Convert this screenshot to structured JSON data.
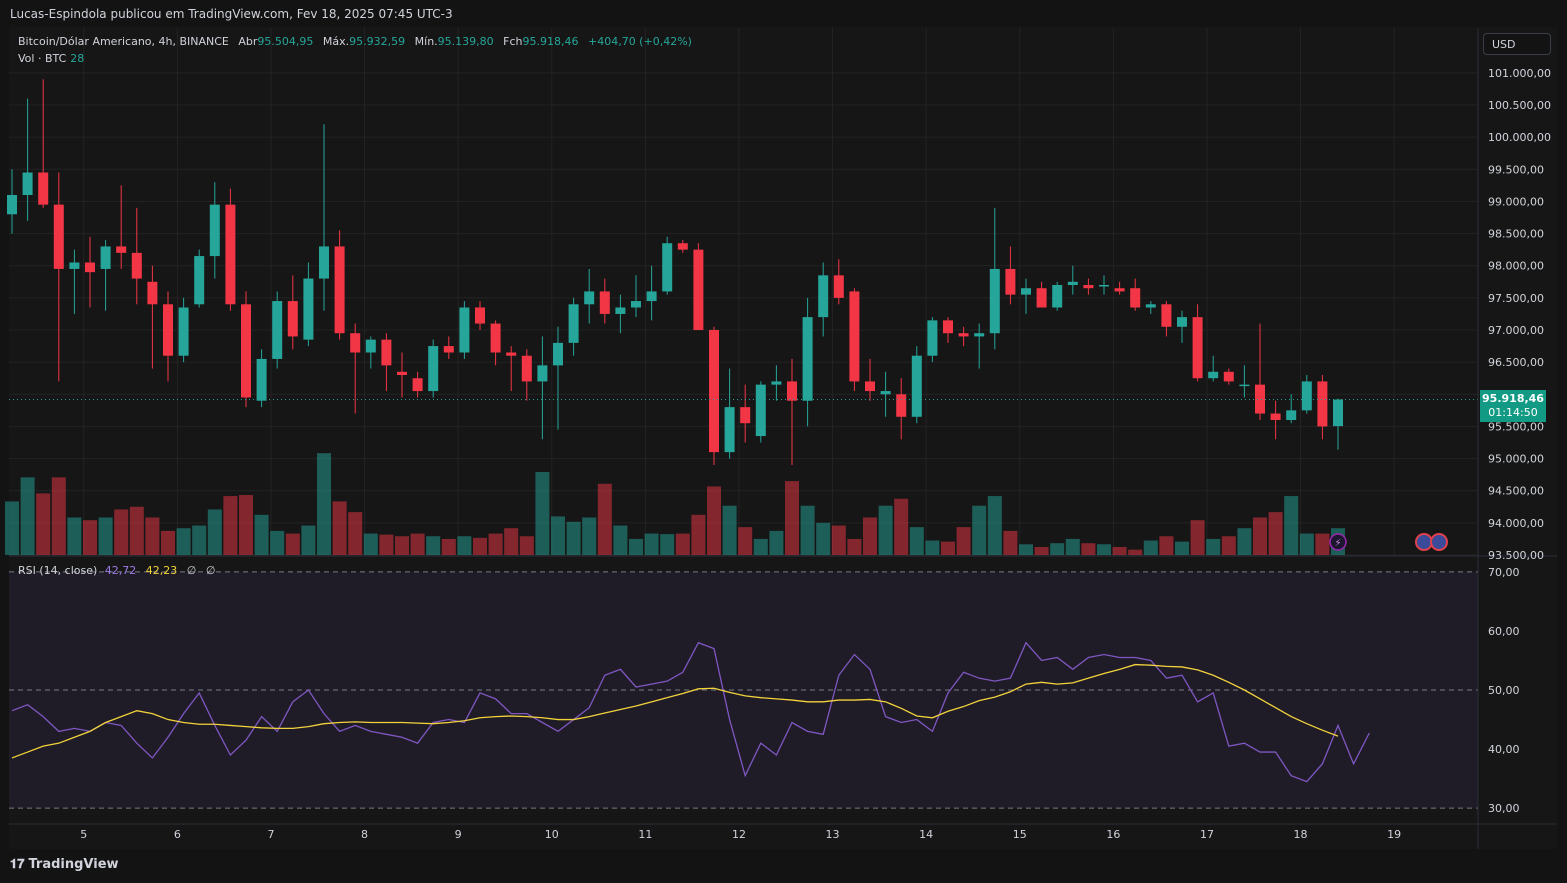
{
  "header": {
    "publisher_line": "Lucas-Espindola publicou em TradingView.com, Fev 18, 2025 07:45 UTC-3"
  },
  "legend": {
    "symbol": "Bitcoin/Dólar Americano, 4h, BINANCE",
    "open_label": "Abr",
    "open": "95.504,95",
    "high_label": "Máx.",
    "high": "95.932,59",
    "low_label": "Mín.",
    "low": "95.139,80",
    "close_label": "Fch",
    "close": "95.918,46",
    "change": "+404,70 (+0,42%)",
    "vol_label": "Vol · BTC",
    "vol_value": "28"
  },
  "rsi_legend": {
    "label": "RSI (14, close)",
    "rsi": "42,72",
    "ma": "42,23",
    "v3": "∅",
    "v4": "∅"
  },
  "currency_button": "USD",
  "price_tag": {
    "price": "95.918,46",
    "countdown": "01:14:50"
  },
  "brand": {
    "name": "TradingView",
    "logo": "tradingview-logo-icon"
  },
  "colors": {
    "up": "#26a69a",
    "down": "#f23645",
    "rsi": "#7e57c2",
    "rsi_ma": "#f2d33c",
    "background": "#161616"
  },
  "chart_data": [
    {
      "type": "candlestick",
      "title": "Bitcoin/Dólar Americano, 4h, BINANCE",
      "ylim": [
        93500,
        101200
      ],
      "y_ticks": [
        "101.000,00",
        "100.500,00",
        "100.000,00",
        "99.500,00",
        "99.000,00",
        "98.500,00",
        "98.000,00",
        "97.500,00",
        "97.000,00",
        "96.500,00",
        "96.000,00",
        "95.500,00",
        "95.000,00",
        "94.500,00",
        "94.000,00",
        "93.500,00"
      ],
      "y_tick_values": [
        101000,
        100500,
        100000,
        99500,
        99000,
        98500,
        98000,
        97500,
        97000,
        96500,
        96000,
        95500,
        95000,
        94500,
        94000,
        93500
      ],
      "x_ticks": [
        "5",
        "6",
        "7",
        "8",
        "9",
        "10",
        "11",
        "12",
        "13",
        "14",
        "15",
        "16",
        "17",
        "18",
        "19"
      ],
      "x_tick_positions": [
        4.6,
        10.6,
        16.6,
        22.6,
        28.6,
        34.6,
        40.6,
        46.6,
        52.6,
        58.6,
        64.6,
        70.6,
        76.6,
        82.6,
        88.6
      ],
      "last_price": 95918.46,
      "candles": [
        {
          "o": 98800,
          "h": 99500,
          "l": 98500,
          "c": 99100
        },
        {
          "o": 99100,
          "h": 100600,
          "l": 98700,
          "c": 99450
        },
        {
          "o": 99450,
          "h": 100900,
          "l": 98900,
          "c": 98950
        },
        {
          "o": 98950,
          "h": 99450,
          "l": 96200,
          "c": 97950
        },
        {
          "o": 97950,
          "h": 98250,
          "l": 97250,
          "c": 98050
        },
        {
          "o": 98050,
          "h": 98450,
          "l": 97350,
          "c": 97900
        },
        {
          "o": 97950,
          "h": 98400,
          "l": 97300,
          "c": 98300
        },
        {
          "o": 98300,
          "h": 99250,
          "l": 97950,
          "c": 98200
        },
        {
          "o": 98200,
          "h": 98900,
          "l": 97400,
          "c": 97800
        },
        {
          "o": 97750,
          "h": 98000,
          "l": 96400,
          "c": 97400
        },
        {
          "o": 97400,
          "h": 97600,
          "l": 96200,
          "c": 96600
        },
        {
          "o": 96600,
          "h": 97500,
          "l": 96500,
          "c": 97350
        },
        {
          "o": 97400,
          "h": 98250,
          "l": 97350,
          "c": 98150
        },
        {
          "o": 98150,
          "h": 99300,
          "l": 97800,
          "c": 98950
        },
        {
          "o": 98950,
          "h": 99200,
          "l": 97300,
          "c": 97400
        },
        {
          "o": 97400,
          "h": 97600,
          "l": 95800,
          "c": 95950
        },
        {
          "o": 95900,
          "h": 96700,
          "l": 95800,
          "c": 96550
        },
        {
          "o": 96550,
          "h": 97600,
          "l": 96400,
          "c": 97450
        },
        {
          "o": 97450,
          "h": 97850,
          "l": 96700,
          "c": 96900
        },
        {
          "o": 96850,
          "h": 98050,
          "l": 96750,
          "c": 97800
        },
        {
          "o": 97800,
          "h": 100200,
          "l": 97300,
          "c": 98300
        },
        {
          "o": 98300,
          "h": 98550,
          "l": 96850,
          "c": 96950
        },
        {
          "o": 96950,
          "h": 97100,
          "l": 95700,
          "c": 96650
        },
        {
          "o": 96650,
          "h": 96900,
          "l": 96400,
          "c": 96850
        },
        {
          "o": 96850,
          "h": 96950,
          "l": 96050,
          "c": 96450
        },
        {
          "o": 96350,
          "h": 96650,
          "l": 95950,
          "c": 96300
        },
        {
          "o": 96250,
          "h": 96350,
          "l": 95950,
          "c": 96050
        },
        {
          "o": 96050,
          "h": 96850,
          "l": 95950,
          "c": 96750
        },
        {
          "o": 96750,
          "h": 96900,
          "l": 96550,
          "c": 96650
        },
        {
          "o": 96650,
          "h": 97450,
          "l": 96550,
          "c": 97350
        },
        {
          "o": 97350,
          "h": 97450,
          "l": 97000,
          "c": 97100
        },
        {
          "o": 97100,
          "h": 97150,
          "l": 96450,
          "c": 96650
        },
        {
          "o": 96650,
          "h": 96750,
          "l": 96050,
          "c": 96600
        },
        {
          "o": 96600,
          "h": 96700,
          "l": 95900,
          "c": 96200
        },
        {
          "o": 96200,
          "h": 96900,
          "l": 95300,
          "c": 96450
        },
        {
          "o": 96450,
          "h": 97050,
          "l": 95450,
          "c": 96800
        },
        {
          "o": 96800,
          "h": 97500,
          "l": 96600,
          "c": 97400
        },
        {
          "o": 97400,
          "h": 97950,
          "l": 97100,
          "c": 97600
        },
        {
          "o": 97600,
          "h": 97800,
          "l": 97100,
          "c": 97250
        },
        {
          "o": 97250,
          "h": 97550,
          "l": 96950,
          "c": 97350
        },
        {
          "o": 97350,
          "h": 97850,
          "l": 97200,
          "c": 97450
        },
        {
          "o": 97450,
          "h": 98000,
          "l": 97150,
          "c": 97600
        },
        {
          "o": 97600,
          "h": 98450,
          "l": 97550,
          "c": 98350
        },
        {
          "o": 98350,
          "h": 98400,
          "l": 98200,
          "c": 98250
        },
        {
          "o": 98250,
          "h": 98350,
          "l": 97000,
          "c": 97000
        },
        {
          "o": 97000,
          "h": 97050,
          "l": 94900,
          "c": 95100
        },
        {
          "o": 95100,
          "h": 96400,
          "l": 95000,
          "c": 95800
        },
        {
          "o": 95800,
          "h": 96150,
          "l": 95250,
          "c": 95550
        },
        {
          "o": 95350,
          "h": 96200,
          "l": 95250,
          "c": 96150
        },
        {
          "o": 96150,
          "h": 96450,
          "l": 95900,
          "c": 96200
        },
        {
          "o": 96200,
          "h": 96550,
          "l": 94900,
          "c": 95900
        },
        {
          "o": 95900,
          "h": 97500,
          "l": 95500,
          "c": 97200
        },
        {
          "o": 97200,
          "h": 98050,
          "l": 96900,
          "c": 97850
        },
        {
          "o": 97850,
          "h": 98100,
          "l": 97400,
          "c": 97500
        },
        {
          "o": 97600,
          "h": 97650,
          "l": 96050,
          "c": 96200
        },
        {
          "o": 96200,
          "h": 96550,
          "l": 95900,
          "c": 96050
        },
        {
          "o": 96000,
          "h": 96350,
          "l": 95650,
          "c": 96050
        },
        {
          "o": 96000,
          "h": 96250,
          "l": 95300,
          "c": 95650
        },
        {
          "o": 95650,
          "h": 96750,
          "l": 95550,
          "c": 96600
        },
        {
          "o": 96600,
          "h": 97200,
          "l": 96500,
          "c": 97150
        },
        {
          "o": 97150,
          "h": 97200,
          "l": 96800,
          "c": 96950
        },
        {
          "o": 96950,
          "h": 97050,
          "l": 96750,
          "c": 96900
        },
        {
          "o": 96900,
          "h": 97100,
          "l": 96400,
          "c": 96950
        },
        {
          "o": 96950,
          "h": 98900,
          "l": 96700,
          "c": 97950
        },
        {
          "o": 97950,
          "h": 98300,
          "l": 97400,
          "c": 97550
        },
        {
          "o": 97550,
          "h": 97800,
          "l": 97250,
          "c": 97650
        },
        {
          "o": 97650,
          "h": 97750,
          "l": 97350,
          "c": 97350
        },
        {
          "o": 97350,
          "h": 97750,
          "l": 97300,
          "c": 97700
        },
        {
          "o": 97700,
          "h": 98000,
          "l": 97550,
          "c": 97750
        },
        {
          "o": 97700,
          "h": 97800,
          "l": 97550,
          "c": 97650
        },
        {
          "o": 97700,
          "h": 97850,
          "l": 97550,
          "c": 97700
        },
        {
          "o": 97650,
          "h": 97750,
          "l": 97550,
          "c": 97600
        },
        {
          "o": 97650,
          "h": 97800,
          "l": 97300,
          "c": 97350
        },
        {
          "o": 97350,
          "h": 97450,
          "l": 97250,
          "c": 97400
        },
        {
          "o": 97400,
          "h": 97450,
          "l": 96900,
          "c": 97050
        },
        {
          "o": 97050,
          "h": 97300,
          "l": 96800,
          "c": 97200
        },
        {
          "o": 97200,
          "h": 97400,
          "l": 96200,
          "c": 96250
        },
        {
          "o": 96250,
          "h": 96600,
          "l": 96200,
          "c": 96350
        },
        {
          "o": 96350,
          "h": 96400,
          "l": 96150,
          "c": 96200
        },
        {
          "o": 96150,
          "h": 96450,
          "l": 95950,
          "c": 96150
        },
        {
          "o": 96150,
          "h": 97100,
          "l": 95600,
          "c": 95700
        },
        {
          "o": 95700,
          "h": 95900,
          "l": 95300,
          "c": 95600
        },
        {
          "o": 95600,
          "h": 96000,
          "l": 95550,
          "c": 95750
        },
        {
          "o": 95750,
          "h": 96300,
          "l": 95700,
          "c": 96200
        },
        {
          "o": 96200,
          "h": 96300,
          "l": 95300,
          "c": 95500
        },
        {
          "o": 95505,
          "h": 95933,
          "l": 95140,
          "c": 95918
        }
      ],
      "volume": [
        1.0,
        1.45,
        1.15,
        1.45,
        0.7,
        0.65,
        0.7,
        0.85,
        0.9,
        0.7,
        0.45,
        0.5,
        0.55,
        0.85,
        1.1,
        1.12,
        0.75,
        0.45,
        0.4,
        0.55,
        1.9,
        1.0,
        0.8,
        0.4,
        0.38,
        0.35,
        0.4,
        0.35,
        0.3,
        0.35,
        0.32,
        0.4,
        0.5,
        0.35,
        1.55,
        0.72,
        0.62,
        0.7,
        1.33,
        0.55,
        0.3,
        0.4,
        0.39,
        0.4,
        0.75,
        1.28,
        0.92,
        0.52,
        0.3,
        0.45,
        1.38,
        0.92,
        0.6,
        0.55,
        0.3,
        0.7,
        0.92,
        1.05,
        0.52,
        0.27,
        0.25,
        0.52,
        0.92,
        1.1,
        0.45,
        0.2,
        0.15,
        0.22,
        0.3,
        0.22,
        0.2,
        0.15,
        0.1,
        0.27,
        0.35,
        0.25,
        0.65,
        0.3,
        0.35,
        0.5,
        0.7,
        0.8,
        1.1,
        0.4,
        0.4,
        0.5
      ]
    },
    {
      "type": "line",
      "title": "RSI (14, close)",
      "ylim": [
        28,
        72
      ],
      "y_ticks": [
        "70,00",
        "60,00",
        "50,00",
        "40,00",
        "30,00"
      ],
      "y_tick_values": [
        70,
        60,
        50,
        40,
        30
      ],
      "bands": [
        70,
        50,
        30
      ],
      "series": [
        {
          "name": "RSI",
          "color": "#7e57c2",
          "values": [
            46.5,
            47.5,
            45.5,
            43,
            43.5,
            43,
            44.5,
            44,
            41,
            38.5,
            42,
            46,
            49.5,
            44,
            39,
            41.5,
            45.5,
            43,
            48,
            50,
            46,
            43,
            44,
            43,
            42.5,
            42,
            41,
            44.5,
            45,
            44.5,
            49.5,
            48.5,
            46,
            46,
            44.5,
            43,
            45,
            47,
            52.5,
            53.5,
            50.5,
            51,
            51.5,
            53,
            58,
            57,
            45,
            35.5,
            41,
            39,
            44.5,
            43,
            42.5,
            52.5,
            56,
            53.5,
            45.5,
            44.5,
            45,
            43,
            49.5,
            53,
            52,
            51.5,
            52,
            58,
            55,
            55.5,
            53.5,
            55.5,
            56,
            55.5,
            55.5,
            55,
            52,
            52.5,
            48,
            49.5,
            40.5,
            41,
            39.5,
            39.5,
            35.5,
            34.5,
            37.5,
            44,
            37.5,
            42.7
          ]
        },
        {
          "name": "RSI-based MA",
          "color": "#f2d33c",
          "values": [
            38.5,
            39.5,
            40.5,
            41,
            42,
            43,
            44.5,
            45.5,
            46.5,
            46,
            45,
            44.5,
            44.2,
            44.2,
            44,
            43.8,
            43.6,
            43.5,
            43.5,
            43.8,
            44.3,
            44.5,
            44.6,
            44.5,
            44.5,
            44.5,
            44.4,
            44.3,
            44.5,
            44.8,
            45.3,
            45.5,
            45.6,
            45.5,
            45.3,
            45,
            45,
            45.5,
            46.1,
            46.7,
            47.3,
            48,
            48.7,
            49.4,
            50.2,
            50.3,
            49.6,
            49,
            48.7,
            48.5,
            48.3,
            48,
            48,
            48.3,
            48.3,
            48.4,
            48,
            46.9,
            45.6,
            45.3,
            46.4,
            47.2,
            48.2,
            48.8,
            49.7,
            51,
            51.3,
            51,
            51.2,
            52,
            52.8,
            53.5,
            54.3,
            54.2,
            54,
            53.9,
            53.4,
            52.5,
            51.3,
            50,
            48.5,
            47,
            45.5,
            44.3,
            43.2,
            42.2
          ]
        }
      ]
    }
  ]
}
